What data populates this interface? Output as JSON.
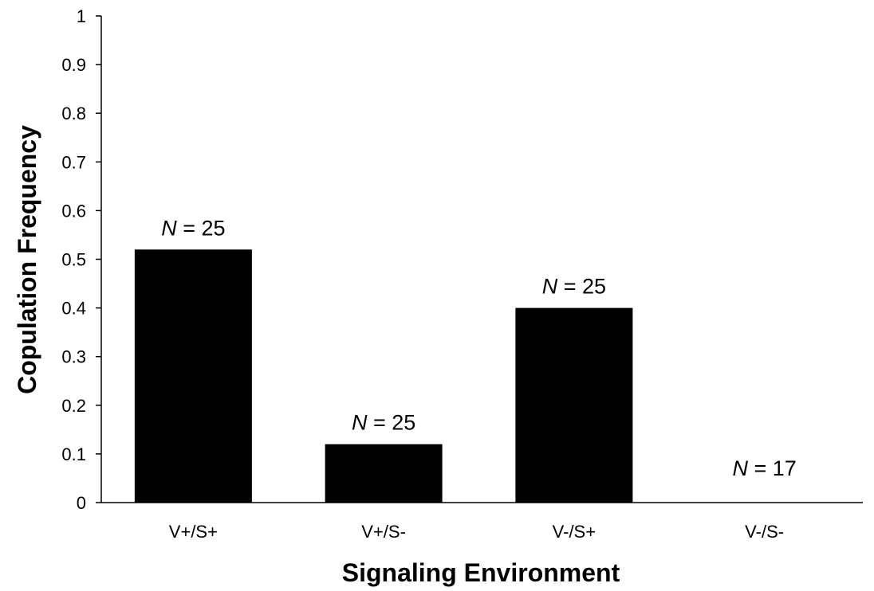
{
  "chart_data": {
    "type": "bar",
    "title": "",
    "xlabel": "Signaling Environment",
    "ylabel": "Copulation Frequency",
    "ylim": [
      0,
      1
    ],
    "yticks": [
      "0",
      "0.1",
      "0.2",
      "0.3",
      "0.4",
      "0.5",
      "0.6",
      "0.7",
      "0.8",
      "0.9",
      "1"
    ],
    "categories": [
      "V+/S+",
      "V+/S-",
      "V-/S+",
      "V-/S-"
    ],
    "values": [
      0.52,
      0.12,
      0.4,
      0
    ],
    "annotations": [
      {
        "n_symbol": "N",
        "text": " = 25"
      },
      {
        "n_symbol": "N",
        "text": " = 25"
      },
      {
        "n_symbol": "N",
        "text": " = 25"
      },
      {
        "n_symbol": "N",
        "text": " = 17"
      }
    ],
    "bar_color": "#000000",
    "grid": false,
    "legend": "none"
  }
}
